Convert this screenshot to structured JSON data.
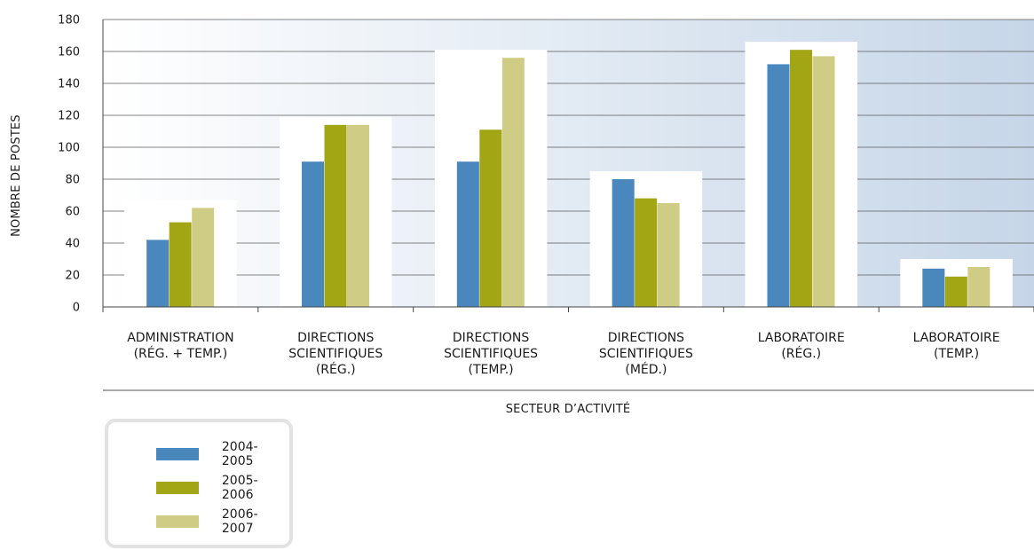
{
  "chart_data": {
    "type": "bar",
    "categories": [
      [
        "ADMINISTRATION",
        "(RÉG. + TEMP.)"
      ],
      [
        "DIRECTIONS",
        "SCIENTIFIQUES",
        "(RÉG.)"
      ],
      [
        "DIRECTIONS",
        "SCIENTIFIQUES",
        "(TEMP.)"
      ],
      [
        "DIRECTIONS",
        "SCIENTIFIQUES",
        "(MÉD.)"
      ],
      [
        "LABORATOIRE",
        "(RÉG.)"
      ],
      [
        "LABORATOIRE",
        "(TEMP.)"
      ]
    ],
    "series": [
      {
        "name": "2004-2005",
        "color": "#4a87bd",
        "values": [
          42,
          91,
          91,
          80,
          152,
          24
        ]
      },
      {
        "name": "2005-2006",
        "color": "#a2a514",
        "values": [
          53,
          114,
          111,
          68,
          161,
          19
        ]
      },
      {
        "name": "2006-2007",
        "color": "#cfcd85",
        "values": [
          62,
          114,
          156,
          65,
          157,
          25
        ]
      }
    ],
    "ylim": [
      0,
      180
    ],
    "yticks": [
      0,
      20,
      40,
      60,
      80,
      100,
      120,
      140,
      160,
      180
    ],
    "xlabel": "SECTEUR D’ACTIVITÉ",
    "ylabel": "NOMBRE DE POSTES",
    "grid": true,
    "legend_position": "bottom-left"
  }
}
